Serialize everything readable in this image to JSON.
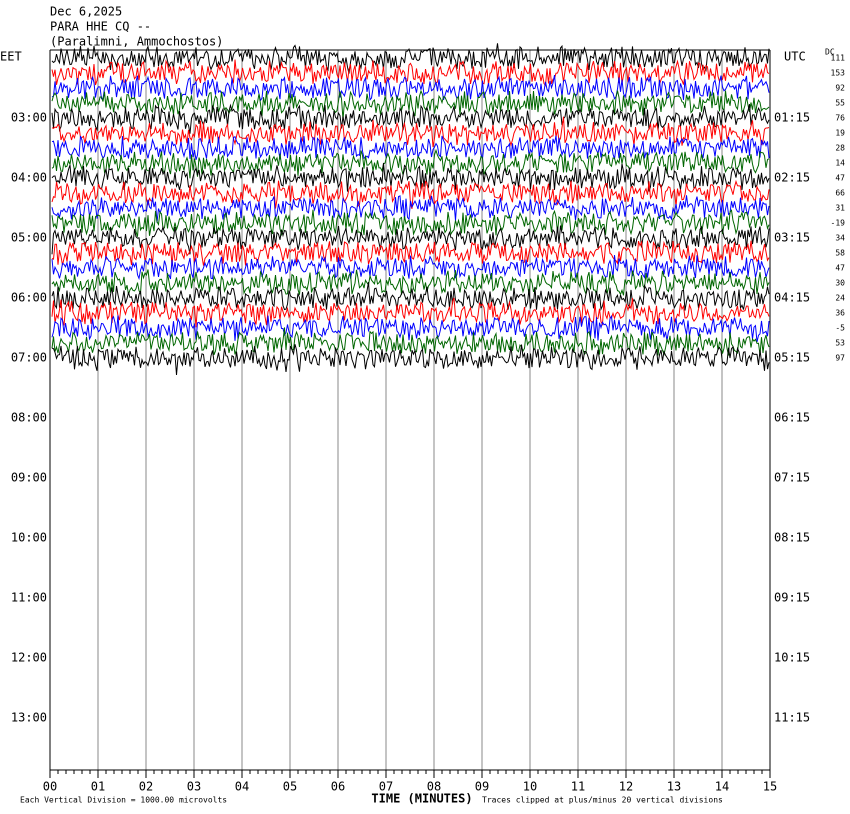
{
  "header": {
    "date": "Dec 6,2025",
    "station": "PARA HHE CQ --",
    "location": "(Paralimni, Ammochostos)"
  },
  "left_zone": "EET",
  "right_zone": "UTC",
  "dc_title": "DC",
  "dc_values": [
    111,
    153,
    92,
    55,
    76,
    19,
    28,
    14,
    47,
    66,
    31,
    -19,
    34,
    58,
    47,
    30,
    24,
    36,
    -5,
    53,
    97
  ],
  "left_hours": [
    "03:00",
    "04:00",
    "05:00",
    "06:00",
    "07:00",
    "08:00",
    "09:00",
    "10:00",
    "11:00",
    "12:00",
    "13:00"
  ],
  "right_hours": [
    "01:15",
    "02:15",
    "03:15",
    "04:15",
    "05:15",
    "06:15",
    "07:15",
    "08:15",
    "09:15",
    "10:15",
    "11:15"
  ],
  "x_ticks": [
    "00",
    "01",
    "02",
    "03",
    "04",
    "05",
    "06",
    "07",
    "08",
    "09",
    "10",
    "11",
    "12",
    "13",
    "14",
    "15"
  ],
  "x_axis_title": "TIME (MINUTES)",
  "footer_left": "Each Vertical Division = 1000.00 microvolts",
  "footer_right": "Traces clipped at plus/minus 20 vertical divisions"
}
